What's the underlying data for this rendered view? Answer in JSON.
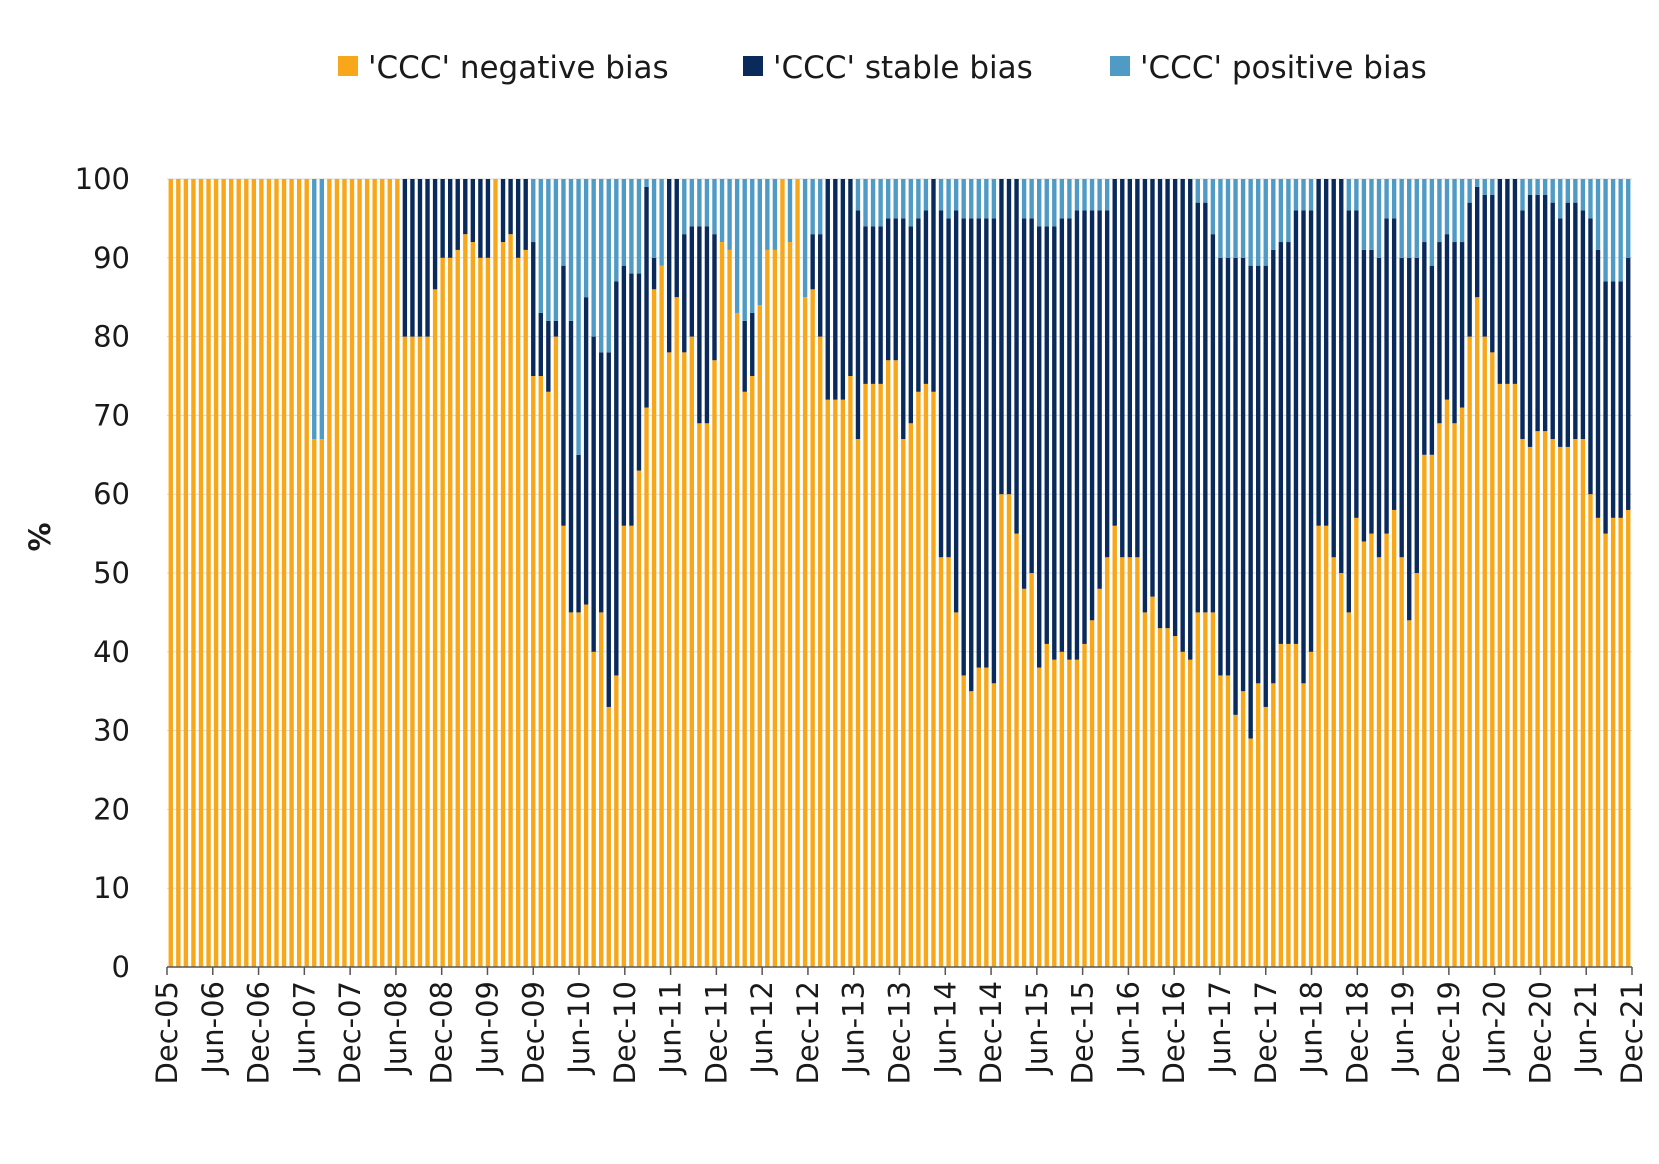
{
  "chart_data": {
    "type": "bar",
    "stacked": true,
    "ylabel": "%",
    "ylim": [
      0,
      100
    ],
    "yticks": [
      0,
      10,
      20,
      30,
      40,
      50,
      60,
      70,
      80,
      90,
      100
    ],
    "legend_position": "top-center",
    "x_start": "Dec-05",
    "x_end": "Dec-21",
    "x_tick_labels": [
      "Dec-05",
      "Jun-06",
      "Dec-06",
      "Jun-07",
      "Dec-07",
      "Jun-08",
      "Dec-08",
      "Jun-09",
      "Dec-09",
      "Jun-10",
      "Dec-10",
      "Jun-11",
      "Dec-11",
      "Jun-12",
      "Dec-12",
      "Jun-13",
      "Dec-13",
      "Jun-14",
      "Dec-14",
      "Jun-15",
      "Dec-15",
      "Jun-16",
      "Dec-16",
      "Jun-17",
      "Dec-17",
      "Jun-18",
      "Dec-18",
      "Jun-19",
      "Dec-19",
      "Jun-20",
      "Dec-20",
      "Jun-21",
      "Dec-21"
    ],
    "series": [
      {
        "name": "'CCC' negative bias",
        "color": "#f9a71a",
        "values": [
          100,
          100,
          100,
          100,
          100,
          100,
          100,
          100,
          100,
          100,
          100,
          100,
          100,
          100,
          100,
          100,
          100,
          100,
          100,
          67,
          67,
          100,
          100,
          100,
          100,
          100,
          100,
          100,
          100,
          100,
          100,
          80,
          80,
          80,
          80,
          86,
          90,
          90,
          91,
          93,
          92,
          90,
          90,
          100,
          92,
          93,
          90,
          91,
          75,
          75,
          73,
          80,
          56,
          45,
          45,
          46,
          40,
          45,
          33,
          37,
          56,
          56,
          63,
          71,
          86,
          89,
          78,
          85,
          78,
          80,
          69,
          69,
          77,
          92,
          91,
          83,
          73,
          75,
          84,
          91,
          91,
          100,
          92,
          100,
          85,
          86,
          80,
          72,
          72,
          72,
          75,
          67,
          74,
          74,
          74,
          77,
          77,
          67,
          69,
          73,
          74,
          73,
          52,
          52,
          45,
          37,
          35,
          38,
          38,
          36,
          60,
          60,
          55,
          48,
          50,
          38,
          41,
          39,
          40,
          39,
          39,
          41,
          44,
          48,
          52,
          56,
          52,
          52,
          52,
          45,
          47,
          43,
          43,
          42,
          40,
          39,
          45,
          45,
          45,
          37,
          37,
          32,
          35,
          29,
          36,
          33,
          36,
          41,
          41,
          41,
          36,
          40,
          56,
          56,
          52,
          50,
          45,
          57,
          54,
          55,
          52,
          55,
          58,
          52,
          44,
          50,
          65,
          65,
          69,
          72,
          69,
          71,
          80,
          85,
          80,
          78,
          74,
          74,
          74,
          67,
          66,
          68,
          68,
          67,
          66,
          66,
          67,
          67,
          60,
          57,
          55,
          57,
          57,
          58
        ]
      },
      {
        "name": "'CCC' stable bias",
        "color": "#0a2a5c",
        "values": [
          0,
          0,
          0,
          0,
          0,
          0,
          0,
          0,
          0,
          0,
          0,
          0,
          0,
          0,
          0,
          0,
          0,
          0,
          0,
          0,
          0,
          0,
          0,
          0,
          0,
          0,
          0,
          0,
          0,
          0,
          0,
          20,
          20,
          20,
          20,
          14,
          10,
          10,
          9,
          7,
          8,
          10,
          10,
          0,
          8,
          7,
          10,
          9,
          17,
          8,
          9,
          2,
          33,
          37,
          20,
          39,
          40,
          33,
          45,
          50,
          33,
          32,
          25,
          28,
          4,
          0,
          22,
          15,
          15,
          14,
          25,
          25,
          16,
          0,
          0,
          0,
          9,
          8,
          0,
          0,
          0,
          0,
          0,
          0,
          0,
          7,
          13,
          28,
          28,
          28,
          25,
          29,
          20,
          20,
          20,
          18,
          18,
          28,
          25,
          22,
          22,
          27,
          44,
          43,
          51,
          58,
          60,
          57,
          57,
          59,
          40,
          40,
          45,
          47,
          45,
          56,
          53,
          55,
          55,
          56,
          57,
          55,
          52,
          48,
          44,
          44,
          48,
          48,
          48,
          55,
          53,
          57,
          57,
          58,
          60,
          61,
          52,
          52,
          48,
          53,
          53,
          58,
          55,
          60,
          53,
          56,
          55,
          51,
          51,
          55,
          60,
          56,
          44,
          44,
          48,
          50,
          51,
          39,
          37,
          36,
          38,
          40,
          37,
          38,
          46,
          40,
          27,
          24,
          23,
          21,
          23,
          21,
          17,
          14,
          18,
          20,
          26,
          26,
          26,
          29,
          32,
          30,
          30,
          30,
          29,
          31,
          30,
          29,
          35,
          34,
          32,
          30,
          30,
          32
        ]
      },
      {
        "name": "'CCC' positive bias",
        "color": "#4f9bc6",
        "values": [
          0,
          0,
          0,
          0,
          0,
          0,
          0,
          0,
          0,
          0,
          0,
          0,
          0,
          0,
          0,
          0,
          0,
          0,
          0,
          33,
          33,
          0,
          0,
          0,
          0,
          0,
          0,
          0,
          0,
          0,
          0,
          0,
          0,
          0,
          0,
          0,
          0,
          0,
          0,
          0,
          0,
          0,
          0,
          0,
          0,
          0,
          0,
          0,
          8,
          17,
          18,
          18,
          11,
          18,
          35,
          15,
          20,
          22,
          22,
          13,
          11,
          12,
          12,
          1,
          10,
          11,
          0,
          0,
          7,
          6,
          6,
          6,
          7,
          8,
          9,
          17,
          18,
          17,
          16,
          9,
          9,
          0,
          8,
          0,
          15,
          7,
          7,
          0,
          0,
          0,
          0,
          4,
          6,
          6,
          6,
          5,
          5,
          5,
          6,
          5,
          4,
          0,
          4,
          5,
          4,
          5,
          5,
          5,
          5,
          5,
          0,
          0,
          0,
          5,
          5,
          6,
          6,
          6,
          5,
          5,
          4,
          4,
          4,
          4,
          4,
          0,
          0,
          0,
          0,
          0,
          0,
          0,
          0,
          0,
          0,
          0,
          3,
          3,
          7,
          10,
          10,
          10,
          10,
          11,
          11,
          11,
          9,
          8,
          8,
          4,
          4,
          4,
          0,
          0,
          0,
          0,
          4,
          4,
          9,
          9,
          10,
          5,
          5,
          10,
          10,
          10,
          8,
          11,
          8,
          7,
          8,
          8,
          3,
          1,
          2,
          2,
          0,
          0,
          0,
          4,
          2,
          2,
          2,
          3,
          5,
          3,
          3,
          4,
          5,
          9,
          13,
          13,
          13,
          10
        ]
      }
    ]
  }
}
